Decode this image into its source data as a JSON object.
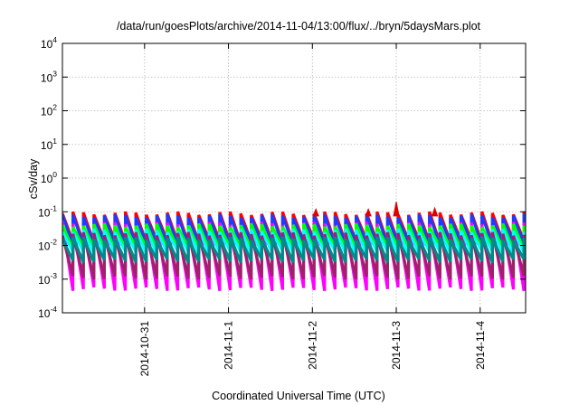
{
  "chart_data": {
    "type": "area",
    "title": "/data/run/goesPlots/archive/2014-11-04/13:00/flux/../bryn/5daysMars.plot",
    "xlabel": "Coordinated Universal Time (UTC)",
    "ylabel": "cSv/day",
    "x_range": [
      "2014-10-30T00:30",
      "2014-11-04T13:00"
    ],
    "x_ticks": [
      "2014-10-31",
      "2014-11-1",
      "2014-11-2",
      "2014-11-3",
      "2014-11-4"
    ],
    "y_scale": "log",
    "ylim": [
      0.0001,
      10000
    ],
    "y_ticks": [
      {
        "base": "10",
        "exp": "-4"
      },
      {
        "base": "10",
        "exp": "-3"
      },
      {
        "base": "10",
        "exp": "-2"
      },
      {
        "base": "10",
        "exp": "-1"
      },
      {
        "base": "10",
        "exp": "0"
      },
      {
        "base": "10",
        "exp": "1"
      },
      {
        "base": "10",
        "exp": "2"
      },
      {
        "base": "10",
        "exp": "3"
      },
      {
        "base": "10",
        "exp": "4"
      }
    ],
    "grid": true,
    "cycle_hours": 3,
    "series": [
      {
        "color": "#ff00ff",
        "peak": 0.045,
        "trough": 0.0005
      },
      {
        "color": "#a0206a",
        "peak": 0.022,
        "trough": 0.0011
      },
      {
        "color": "#008b8b",
        "peak": 0.016,
        "trough": 0.0035
      },
      {
        "color": "#00ffff",
        "peak": 0.028,
        "trough": 0.006
      },
      {
        "color": "#00ff00",
        "peak": 0.04,
        "trough": 0.008
      },
      {
        "color": "#1e3cff",
        "peak": 0.075,
        "trough": 0.011
      },
      {
        "color": "#ff0000",
        "peak": 0.09,
        "trough": 0.013
      }
    ],
    "events": [
      {
        "x": "2014-11-02T01:00",
        "y": 0.12
      },
      {
        "x": "2014-11-02T16:00",
        "y": 0.12
      },
      {
        "x": "2014-11-03T00:00",
        "y": 0.2
      },
      {
        "x": "2014-11-03T11:00",
        "y": 0.13
      }
    ]
  }
}
